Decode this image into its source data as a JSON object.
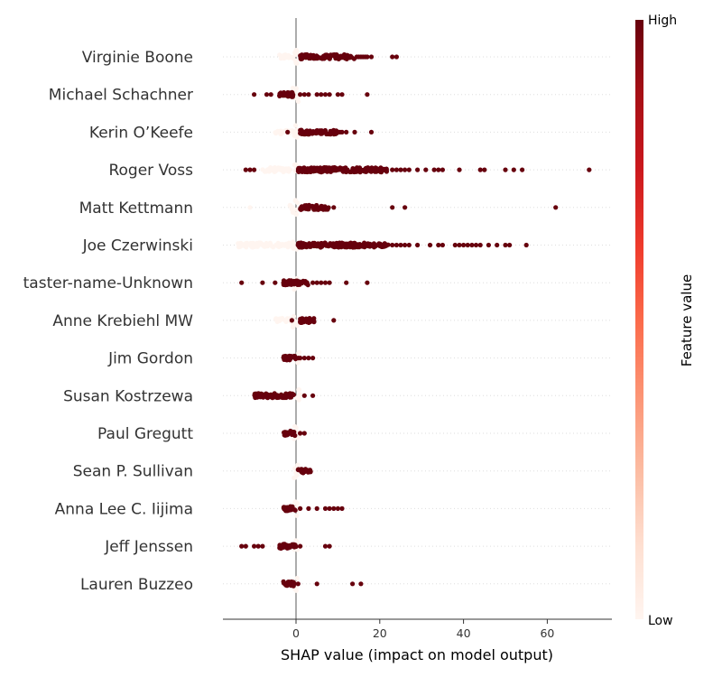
{
  "chart_data": {
    "type": "scatter",
    "subtype": "shap-beeswarm",
    "xlabel": "SHAP value (impact on model output)",
    "xlim": [
      -18,
      75
    ],
    "xticks": [
      0,
      20,
      40,
      60
    ],
    "colorbar": {
      "label": "Feature value",
      "high_label": "High",
      "low_label": "Low",
      "high_color": "#67000d",
      "low_color": "#fff5f0"
    },
    "zero_line_color": "#808080",
    "features": [
      {
        "name": "Virginie Boone",
        "low": {
          "spread": [
            -4,
            0.3
          ],
          "points": []
        },
        "high": {
          "dense": [
            1,
            14
          ],
          "points": [
            14.5,
            15,
            15.5,
            16,
            16.5,
            17,
            18,
            23,
            24
          ]
        }
      },
      {
        "name": "Michael Schachner",
        "low": {
          "spread": [
            -1,
            1
          ],
          "points": []
        },
        "high": {
          "dense": [
            -4,
            -0.5
          ],
          "points": [
            -10,
            -7,
            -6,
            1,
            2,
            3,
            5,
            6,
            7,
            8,
            10,
            11,
            17
          ]
        }
      },
      {
        "name": "Kerin O’Keefe",
        "low": {
          "spread": [
            -5,
            0.3
          ],
          "points": []
        },
        "high": {
          "dense": [
            1,
            10
          ],
          "points": [
            -2,
            10.5,
            11,
            12,
            14,
            18
          ]
        }
      },
      {
        "name": "Roger Voss",
        "low": {
          "spread": [
            -8,
            0.2
          ],
          "points": []
        },
        "high": {
          "dense": [
            0.5,
            22
          ],
          "points": [
            -12,
            -11,
            -10,
            23,
            24,
            25,
            26,
            27,
            29,
            31,
            33,
            34,
            35,
            39,
            44,
            45,
            50,
            52,
            54,
            70
          ]
        }
      },
      {
        "name": "Matt Kettmann",
        "low": {
          "spread": [
            -2,
            0.5
          ],
          "points": [
            -11
          ]
        },
        "high": {
          "dense": [
            1,
            8
          ],
          "points": [
            9,
            23,
            26,
            62
          ]
        }
      },
      {
        "name": "Joe Czerwinski",
        "low": {
          "spread": [
            -14,
            0.2
          ],
          "points": []
        },
        "high": {
          "dense": [
            0.5,
            22
          ],
          "points": [
            23,
            24,
            25,
            26,
            27,
            29,
            32,
            34,
            35,
            38,
            39,
            40,
            41,
            42,
            43,
            44,
            46,
            48,
            50,
            51,
            55
          ]
        }
      },
      {
        "name": "taster-name-Unknown",
        "low": {
          "spread": [
            -1,
            1
          ],
          "points": []
        },
        "high": {
          "dense": [
            -3,
            3
          ],
          "points": [
            -13,
            -8,
            -5,
            4,
            5,
            6,
            7,
            8,
            12,
            17
          ]
        }
      },
      {
        "name": "Anne Krebiehl MW",
        "low": {
          "spread": [
            -5,
            0.5
          ],
          "points": []
        },
        "high": {
          "dense": [
            1,
            5
          ],
          "points": [
            -1,
            9
          ]
        }
      },
      {
        "name": "Jim Gordon",
        "low": {
          "spread": [
            0,
            1
          ],
          "points": []
        },
        "high": {
          "dense": [
            -3,
            0
          ],
          "points": [
            0.5,
            1,
            2,
            3,
            4
          ]
        }
      },
      {
        "name": "Susan Kostrzewa",
        "low": {
          "spread": [
            0,
            1
          ],
          "points": []
        },
        "high": {
          "dense": [
            -10,
            -0.5
          ],
          "points": [
            2,
            4
          ]
        }
      },
      {
        "name": "Paul Gregutt",
        "low": {
          "spread": [
            -0.5,
            1
          ],
          "points": []
        },
        "high": {
          "dense": [
            -3,
            0
          ],
          "points": [
            1,
            2
          ]
        }
      },
      {
        "name": "Sean P. Sullivan",
        "low": {
          "spread": [
            -0.5,
            0.5
          ],
          "points": []
        },
        "high": {
          "dense": [
            0.5,
            3.5
          ],
          "points": []
        }
      },
      {
        "name": "Anna Lee C. Iijima",
        "low": {
          "spread": [
            -0.5,
            0.5
          ],
          "points": []
        },
        "high": {
          "dense": [
            -3,
            0
          ],
          "points": [
            1,
            3,
            5,
            7,
            8,
            9,
            10,
            11
          ]
        }
      },
      {
        "name": "Jeff Jenssen",
        "low": {
          "spread": [
            -0.5,
            0.5
          ],
          "points": []
        },
        "high": {
          "dense": [
            -4,
            0
          ],
          "points": [
            -13,
            -12,
            -10,
            -9,
            -8,
            1,
            7,
            8
          ]
        }
      },
      {
        "name": "Lauren Buzzeo",
        "low": {
          "spread": [
            -0.5,
            0.5
          ],
          "points": []
        },
        "high": {
          "dense": [
            -3,
            0
          ],
          "points": [
            0.5,
            5,
            13.5,
            15.5
          ]
        }
      }
    ]
  }
}
